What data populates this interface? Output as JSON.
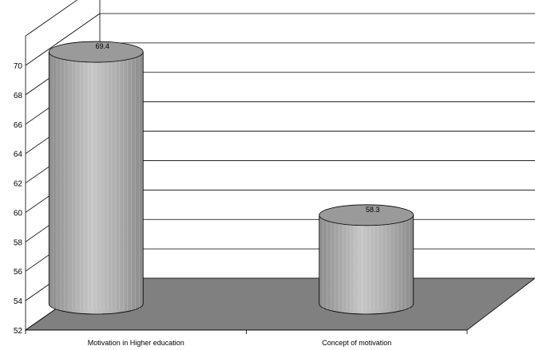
{
  "chart_data": {
    "type": "bar",
    "style": "3d-cylinder",
    "categories": [
      "Motivation in Higher education",
      "Concept of motivation"
    ],
    "values": [
      69.4,
      58.3
    ],
    "data_labels": [
      "69.4",
      "58.3"
    ],
    "y_ticks": [
      "52",
      "54",
      "56",
      "58",
      "60",
      "62",
      "64",
      "66",
      "68",
      "70"
    ],
    "ylim": [
      52,
      70
    ],
    "grid": true,
    "legend": "none",
    "title": "",
    "xlabel": "",
    "ylabel": ""
  },
  "colors": {
    "floor": "#808080",
    "cylinder_light": "#e4e4e4",
    "cylinder_mid": "#b9b9b9",
    "cylinder_dark": "#8a8a8a",
    "cylinder_top": "#9a9a9a",
    "grid": "#000000"
  }
}
